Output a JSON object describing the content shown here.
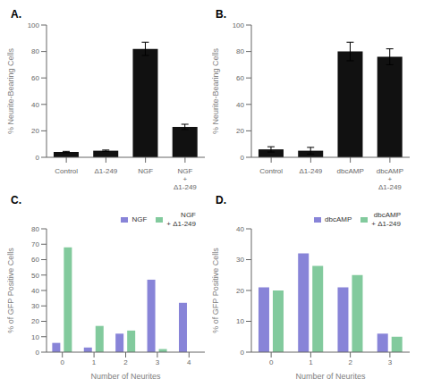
{
  "chart_data": [
    {
      "type": "bar",
      "title": "A.",
      "categories": [
        "Control",
        "Δ1-249",
        "NGF",
        "NGF\n+\nΔ1-249"
      ],
      "values": [
        4.0,
        5.0,
        82.0,
        23.0
      ],
      "errors": [
        0.5,
        0.5,
        5.0,
        2.0
      ],
      "color": "#111111",
      "ylabel": "% Neurite-Bearing Cells",
      "ylim": [
        0,
        100
      ],
      "yticks": [
        0,
        20,
        40,
        60,
        80,
        100
      ],
      "grid": false
    },
    {
      "type": "bar",
      "title": "B.",
      "categories": [
        "Control",
        "Δ1-249",
        "dbcAMP",
        "dbcAMP\n+\nΔ1-249"
      ],
      "values": [
        6.0,
        5.0,
        80.0,
        76.0
      ],
      "errors": [
        2.0,
        2.5,
        7.0,
        6.0
      ],
      "color": "#111111",
      "ylabel": "% Neurite-Bearing Cells",
      "ylim": [
        0,
        100
      ],
      "yticks": [
        0,
        20,
        40,
        60,
        80,
        100
      ],
      "grid": false
    },
    {
      "type": "bar",
      "title": "C.",
      "x": [
        0,
        1,
        2,
        3,
        4
      ],
      "series": [
        {
          "name": "NGF",
          "color": "#8884d8",
          "values": [
            6,
            3,
            12,
            47,
            32
          ]
        },
        {
          "name": "NGF\n+ Δ1-249",
          "color": "#82ca9d",
          "values": [
            68,
            17,
            14,
            2,
            0
          ]
        }
      ],
      "xlabel": "Number of Neurites",
      "ylabel": "% of GFP Positive Cells",
      "ylim": [
        0,
        80
      ],
      "yticks": [
        0,
        10,
        20,
        30,
        40,
        50,
        60,
        70,
        80
      ],
      "grid": false,
      "legend": "upper right"
    },
    {
      "type": "bar",
      "title": "D.",
      "x": [
        0,
        1,
        2,
        3
      ],
      "series": [
        {
          "name": "dbcAMP",
          "color": "#8884d8",
          "values": [
            21,
            32,
            21,
            6
          ]
        },
        {
          "name": "dbcAMP\n+ Δ1-249",
          "color": "#82ca9d",
          "values": [
            20,
            28,
            25,
            5
          ]
        }
      ],
      "xlabel": "Number of Neurites",
      "ylabel": "% of GFP Positive Cells",
      "ylim": [
        0,
        40
      ],
      "yticks": [
        0,
        10,
        20,
        30,
        40
      ],
      "grid": false,
      "legend": "upper right"
    }
  ]
}
